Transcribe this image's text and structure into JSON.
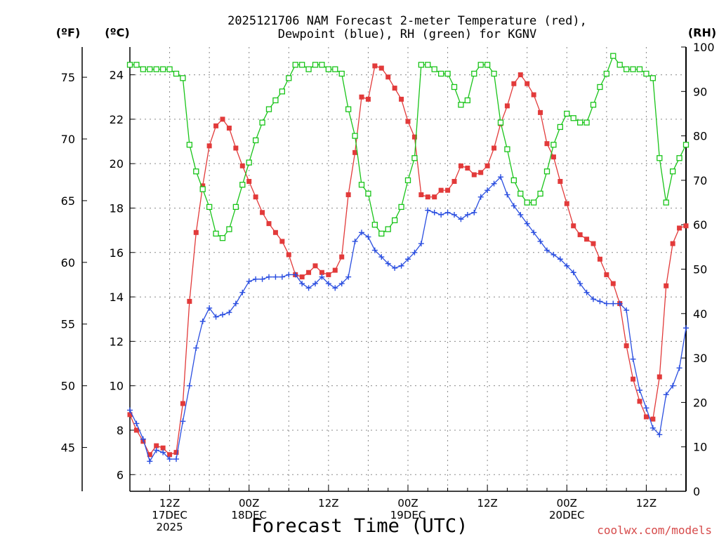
{
  "chart_data": {
    "type": "line",
    "title": [
      "2025121706 NAM Forecast 2-meter Temperature (red),",
      "Dewpoint (blue), RH (green) for KGNV"
    ],
    "xlabel": "Forecast Time (UTC)",
    "credit": "coolwx.com/models",
    "units": {
      "fahrenheit": "(ºF)",
      "celsius": "(ºC)",
      "rh": "(RH)"
    },
    "grid": true,
    "x_hours_range": [
      6,
      90
    ],
    "y_celsius_lim": [
      5.25,
      25.25
    ],
    "y_rh_lim": [
      0,
      100
    ],
    "left_celsius_ticks": [
      6,
      8,
      10,
      12,
      14,
      16,
      18,
      20,
      22,
      24
    ],
    "left_fahrenheit_ticks": [
      45,
      50,
      55,
      60,
      65,
      70,
      75
    ],
    "right_rh_ticks": [
      0,
      10,
      20,
      30,
      40,
      50,
      60,
      70,
      80,
      90,
      100
    ],
    "x_ticks": [
      {
        "hour": 12,
        "lines": [
          "12Z",
          "17DEC",
          "2025"
        ]
      },
      {
        "hour": 24,
        "lines": [
          "00Z",
          "18DEC"
        ]
      },
      {
        "hour": 36,
        "lines": [
          "12Z"
        ]
      },
      {
        "hour": 48,
        "lines": [
          "00Z",
          "19DEC"
        ]
      },
      {
        "hour": 60,
        "lines": [
          "12Z"
        ]
      },
      {
        "hour": 72,
        "lines": [
          "00Z",
          "20DEC"
        ]
      },
      {
        "hour": 84,
        "lines": [
          "12Z"
        ]
      }
    ],
    "series": [
      {
        "name": "Temperature",
        "unit": "C",
        "color": "#e23a3a",
        "marker": "filled-square",
        "x": [
          6,
          7,
          8,
          9,
          10,
          11,
          12,
          13,
          14,
          15,
          16,
          17,
          18,
          19,
          20,
          21,
          22,
          23,
          24,
          25,
          26,
          27,
          28,
          29,
          30,
          31,
          32,
          33,
          34,
          35,
          36,
          37,
          38,
          39,
          40,
          41,
          42,
          43,
          44,
          45,
          46,
          47,
          48,
          49,
          50,
          51,
          52,
          53,
          54,
          55,
          56,
          57,
          58,
          59,
          60,
          61,
          62,
          63,
          64,
          65,
          66,
          67,
          68,
          69,
          70,
          71,
          72,
          73,
          74,
          75,
          76,
          77,
          78,
          79,
          80,
          81,
          82,
          83,
          84,
          85,
          86,
          87,
          88,
          89,
          90
        ],
        "y": [
          8.7,
          8.0,
          7.5,
          6.9,
          7.3,
          7.2,
          6.9,
          7.0,
          9.2,
          13.8,
          16.9,
          19.0,
          20.8,
          21.7,
          22.0,
          21.6,
          20.7,
          19.9,
          19.2,
          18.5,
          17.8,
          17.3,
          16.9,
          16.5,
          15.9,
          15.0,
          14.9,
          15.1,
          15.4,
          15.1,
          15.0,
          15.2,
          15.8,
          18.6,
          20.5,
          23.0,
          22.9,
          24.4,
          24.3,
          23.9,
          23.4,
          22.9,
          21.9,
          21.2,
          18.6,
          18.5,
          18.5,
          18.8,
          18.8,
          19.2,
          19.9,
          19.8,
          19.5,
          19.6,
          19.9,
          20.7,
          21.8,
          22.6,
          23.6,
          24.0,
          23.6,
          23.1,
          22.3,
          20.9,
          20.3,
          19.2,
          18.2,
          17.2,
          16.8,
          16.6,
          16.4,
          15.7,
          15.0,
          14.6,
          13.7,
          11.8,
          10.3,
          9.3,
          8.6,
          8.5,
          10.4,
          14.5,
          16.4,
          17.1,
          17.2
        ]
      },
      {
        "name": "Dewpoint",
        "unit": "C",
        "color": "#2a4ee0",
        "marker": "plus",
        "x": [
          6,
          7,
          8,
          9,
          10,
          11,
          12,
          13,
          14,
          15,
          16,
          17,
          18,
          19,
          20,
          21,
          22,
          23,
          24,
          25,
          26,
          27,
          28,
          29,
          30,
          31,
          32,
          33,
          34,
          35,
          36,
          37,
          38,
          39,
          40,
          41,
          42,
          43,
          44,
          45,
          46,
          47,
          48,
          49,
          50,
          51,
          52,
          53,
          54,
          55,
          56,
          57,
          58,
          59,
          60,
          61,
          62,
          63,
          64,
          65,
          66,
          67,
          68,
          69,
          70,
          71,
          72,
          73,
          74,
          75,
          76,
          77,
          78,
          79,
          80,
          81,
          82,
          83,
          84,
          85,
          86,
          87,
          88,
          89,
          90
        ],
        "y": [
          8.9,
          8.3,
          7.6,
          6.6,
          7.1,
          7.0,
          6.7,
          6.7,
          8.4,
          10.0,
          11.7,
          12.9,
          13.5,
          13.1,
          13.2,
          13.3,
          13.7,
          14.2,
          14.7,
          14.8,
          14.8,
          14.9,
          14.9,
          14.9,
          15.0,
          15.0,
          14.6,
          14.4,
          14.6,
          14.9,
          14.6,
          14.4,
          14.6,
          14.9,
          16.5,
          16.9,
          16.7,
          16.1,
          15.8,
          15.5,
          15.3,
          15.4,
          15.7,
          16.0,
          16.4,
          17.9,
          17.8,
          17.7,
          17.8,
          17.7,
          17.5,
          17.7,
          17.8,
          18.5,
          18.8,
          19.1,
          19.4,
          18.6,
          18.1,
          17.7,
          17.3,
          16.9,
          16.5,
          16.1,
          15.9,
          15.7,
          15.4,
          15.1,
          14.6,
          14.2,
          13.9,
          13.8,
          13.7,
          13.7,
          13.7,
          13.4,
          11.2,
          9.8,
          9.0,
          8.1,
          7.8,
          9.6,
          10.0,
          10.8,
          12.6
        ]
      },
      {
        "name": "RH",
        "unit": "%",
        "color": "#19c419",
        "marker": "open-square",
        "x": [
          6,
          7,
          8,
          9,
          10,
          11,
          12,
          13,
          14,
          15,
          16,
          17,
          18,
          19,
          20,
          21,
          22,
          23,
          24,
          25,
          26,
          27,
          28,
          29,
          30,
          31,
          32,
          33,
          34,
          35,
          36,
          37,
          38,
          39,
          40,
          41,
          42,
          43,
          44,
          45,
          46,
          47,
          48,
          49,
          50,
          51,
          52,
          53,
          54,
          55,
          56,
          57,
          58,
          59,
          60,
          61,
          62,
          63,
          64,
          65,
          66,
          67,
          68,
          69,
          70,
          71,
          72,
          73,
          74,
          75,
          76,
          77,
          78,
          79,
          80,
          81,
          82,
          83,
          84,
          85,
          86,
          87,
          88,
          89,
          90
        ],
        "y": [
          96,
          96,
          95,
          95,
          95,
          95,
          95,
          94,
          93,
          78,
          72,
          68,
          64,
          58,
          57,
          59,
          64,
          69,
          74,
          79,
          83,
          86,
          88,
          90,
          93,
          96,
          96,
          95,
          96,
          96,
          95,
          95,
          94,
          86,
          80,
          69,
          67,
          60,
          58,
          59,
          61,
          64,
          70,
          75,
          96,
          96,
          95,
          94,
          94,
          91,
          87,
          88,
          94,
          96,
          96,
          94,
          83,
          77,
          70,
          67,
          65,
          65,
          67,
          72,
          78,
          82,
          85,
          84,
          83,
          83,
          87,
          91,
          94,
          98,
          96,
          95,
          95,
          95,
          94,
          93,
          75,
          65,
          72,
          75,
          78
        ]
      }
    ]
  }
}
